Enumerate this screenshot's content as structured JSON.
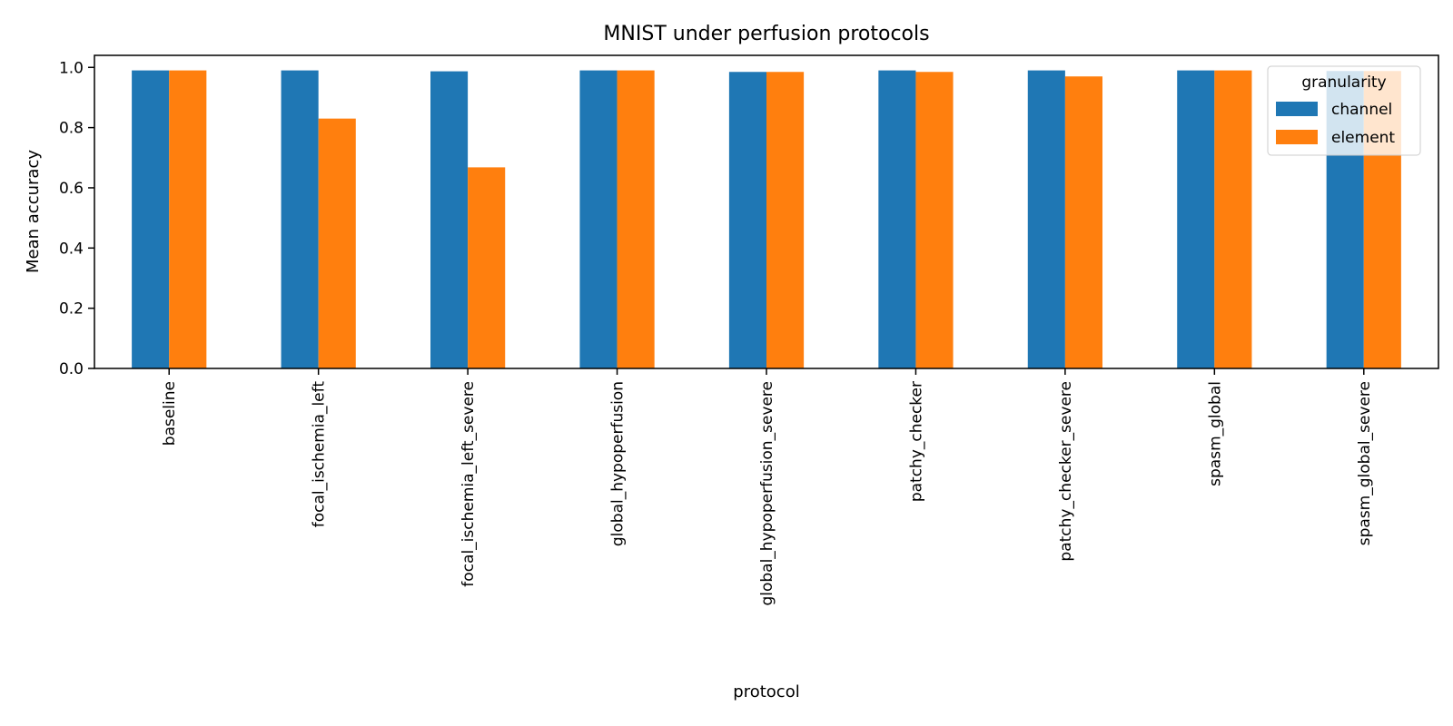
{
  "chart_data": {
    "type": "bar",
    "title": "MNIST under perfusion protocols",
    "xlabel": "protocol",
    "ylabel": "Mean accuracy",
    "ylim": [
      0,
      1.04
    ],
    "yticks": [
      0.0,
      0.2,
      0.4,
      0.6,
      0.8,
      1.0
    ],
    "ytick_labels": [
      "0.0",
      "0.2",
      "0.4",
      "0.6",
      "0.8",
      "1.0"
    ],
    "categories": [
      "baseline",
      "focal_ischemia_left",
      "focal_ischemia_left_severe",
      "global_hypoperfusion",
      "global_hypoperfusion_severe",
      "patchy_checker",
      "patchy_checker_severe",
      "spasm_global",
      "spasm_global_severe"
    ],
    "series": [
      {
        "name": "channel",
        "color": "#1f77b4",
        "values": [
          0.99,
          0.99,
          0.987,
          0.99,
          0.985,
          0.99,
          0.99,
          0.99,
          0.988
        ]
      },
      {
        "name": "element",
        "color": "#ff7f0e",
        "values": [
          0.99,
          0.83,
          0.668,
          0.99,
          0.985,
          0.985,
          0.97,
          0.99,
          0.988
        ]
      }
    ],
    "legend": {
      "title": "granularity",
      "position": "upper right"
    },
    "grid": false
  }
}
